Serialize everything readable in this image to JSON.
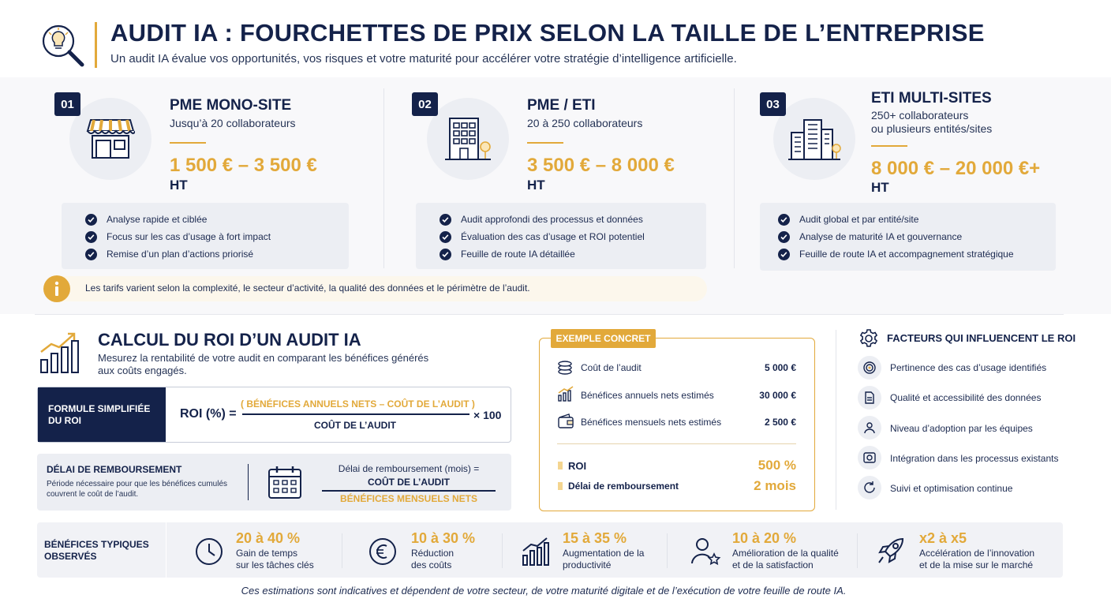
{
  "header": {
    "title": "AUDIT IA : FOURCHETTES DE PRIX SELON LA TAILLE DE L’ENTREPRISE",
    "subtitle": "Un audit IA évalue vos opportunités, vos risques et votre maturité pour accélérer votre stratégie d’intelligence artificielle.",
    "icon": "lightbulb-magnifier-icon"
  },
  "tiers": [
    {
      "number": "01",
      "name": "PME MONO-SITE",
      "sub1": "Jusqu’à 20 collaborateurs",
      "sub2": "",
      "price": "1 500 € – 3 500 €",
      "ht": "HT",
      "icon": "storefront-icon",
      "features": [
        "Analyse rapide et ciblée",
        "Focus sur les cas d’usage à fort impact",
        "Remise d’un plan d’actions priorisé"
      ]
    },
    {
      "number": "02",
      "name": "PME / ETI",
      "sub1": "20 à 250 collaborateurs",
      "sub2": "",
      "price": "3 500 € – 8 000 €",
      "ht": "HT",
      "icon": "office-building-icon",
      "features": [
        "Audit approfondi des processus et données",
        "Évaluation des cas d’usage et ROI potentiel",
        "Feuille de route IA détaillée"
      ]
    },
    {
      "number": "03",
      "name": "ETI MULTI-SITES",
      "sub1": "250+ collaborateurs",
      "sub2": "ou plusieurs entités/sites",
      "price": "8 000 € – 20 000 €+",
      "ht": "HT",
      "icon": "city-buildings-icon",
      "features": [
        "Audit global et par entité/site",
        "Analyse de maturité IA et gouvernance",
        "Feuille de route IA et accompagnement stratégique"
      ]
    }
  ],
  "info": {
    "text": "Les tarifs varient selon la complexité, le secteur d’activité, la qualité des données et le périmètre de l’audit.",
    "icon": "info-icon"
  },
  "roi": {
    "title": "CALCUL DU ROI D’UN AUDIT IA",
    "desc1": "Mesurez la rentabilité de votre audit en comparant les bénéfices générés",
    "desc2": "aux coûts engagés.",
    "icon": "growth-chart-icon",
    "formula_label1": "FORMULE SIMPLIFIÉE",
    "formula_label2": "DU ROI",
    "formula_lhs": "ROI (%) =",
    "formula_num": "( BÉNÉFICES ANNUELS NETS – COÛT DE L’AUDIT )",
    "formula_den": "COÛT DE L’AUDIT",
    "formula_mult": "× 100",
    "delai_title": "DÉLAI DE REMBOURSEMENT",
    "delai_desc1": "Période nécessaire pour que les bénéfices cumulés",
    "delai_desc2": "couvrent le coût de l’audit.",
    "delai_icon": "calendar-icon",
    "delai_formula_label": "Délai de remboursement (mois) =",
    "delai_num": "COÛT DE L’AUDIT",
    "delai_den": "BÉNÉFICES MENSUELS NETS"
  },
  "example": {
    "label": "EXEMPLE CONCRET",
    "rows": [
      {
        "label": "Coût de l’audit",
        "value": "5 000 €",
        "icon": "coins-icon"
      },
      {
        "label": "Bénéfices annuels nets estimés",
        "value": "30 000 €",
        "icon": "bar-chart-icon"
      },
      {
        "label": "Bénéfices mensuels nets estimés",
        "value": "2 500 €",
        "icon": "wallet-icon"
      }
    ],
    "roi_label": "ROI",
    "roi_value": "500 %",
    "delay_label": "Délai de remboursement",
    "delay_value": "2 mois"
  },
  "factors": {
    "title": "FACTEURS QUI INFLUENCENT LE ROI",
    "icon": "gear-icon",
    "items": [
      {
        "label": "Pertinence des cas d’usage identifiés",
        "icon": "target-icon"
      },
      {
        "label": "Qualité et accessibilité des données",
        "icon": "data-document-icon"
      },
      {
        "label": "Niveau d’adoption par les équipes",
        "icon": "team-icon"
      },
      {
        "label": "Intégration dans les processus existants",
        "icon": "process-gear-icon"
      },
      {
        "label": "Suivi et optimisation continue",
        "icon": "refresh-icon"
      }
    ]
  },
  "benefits": {
    "title1": "BÉNÉFICES TYPIQUES",
    "title2": "OBSERVÉS",
    "items": [
      {
        "value": "20 à 40 %",
        "line1": "Gain de temps",
        "line2": "sur les tâches clés",
        "icon": "clock-icon"
      },
      {
        "value": "10 à 30 %",
        "line1": "Réduction",
        "line2": "des coûts",
        "icon": "euro-icon"
      },
      {
        "value": "15 à 35 %",
        "line1": "Augmentation de la",
        "line2": "productivité",
        "icon": "productivity-chart-icon"
      },
      {
        "value": "10 à 20 %",
        "line1": "Amélioration de la qualité",
        "line2": "et de la satisfaction",
        "icon": "user-star-icon"
      },
      {
        "value": "x2 à x5",
        "line1": "Accélération de l’innovation",
        "line2": "et de la mise sur le marché",
        "icon": "rocket-icon"
      }
    ]
  },
  "footer": "Ces estimations sont indicatives et dépendent de votre secteur, de votre maturité digitale et de l’exécution de votre feuille de route IA.",
  "colors": {
    "navy": "#14224a",
    "gold": "#e2a93a"
  }
}
